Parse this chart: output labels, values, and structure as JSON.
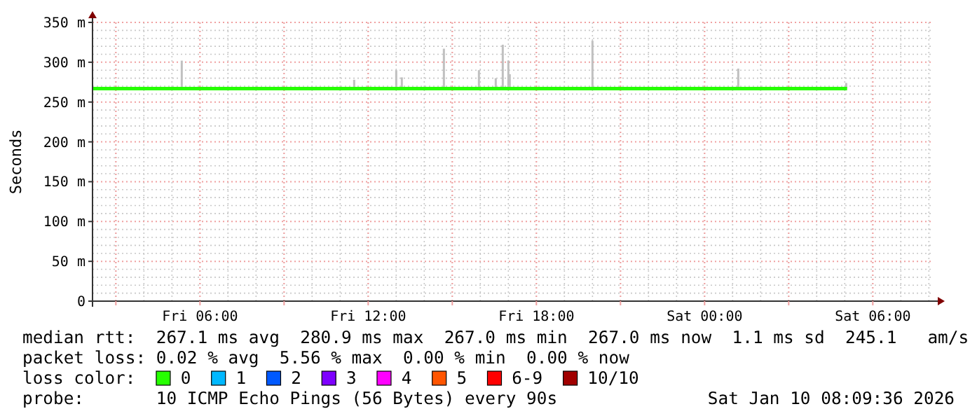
{
  "chart_data": {
    "type": "line",
    "ylabel": "Seconds",
    "legend_title": "loss color:",
    "legend": "bottom",
    "grid": true,
    "xlim": [
      "2026-01-09T02:10",
      "2026-01-10T08:10"
    ],
    "xticks": [
      {
        "value": "2026-01-09T03:00",
        "label": null
      },
      {
        "value": "2026-01-09T06:00",
        "label": "Fri 06:00"
      },
      {
        "value": "2026-01-09T09:00",
        "label": null
      },
      {
        "value": "2026-01-09T12:00",
        "label": "Fri 12:00"
      },
      {
        "value": "2026-01-09T15:00",
        "label": null
      },
      {
        "value": "2026-01-09T18:00",
        "label": "Fri 18:00"
      },
      {
        "value": "2026-01-09T21:00",
        "label": null
      },
      {
        "value": "2026-01-10T00:00",
        "label": "Sat 00:00"
      },
      {
        "value": "2026-01-10T03:00",
        "label": null
      },
      {
        "value": "2026-01-10T06:00",
        "label": "Sat 06:00"
      }
    ],
    "ylim": [
      0,
      350
    ],
    "yticks": [
      0,
      {
        "value": 50,
        "label": "50 m"
      },
      {
        "value": 100,
        "label": "100 m"
      },
      {
        "value": 150,
        "label": "150 m"
      },
      {
        "value": 200,
        "label": "200 m"
      },
      {
        "value": 250,
        "label": "250 m"
      },
      {
        "value": 300,
        "label": "300 m"
      },
      {
        "value": 350,
        "label": "350 m"
      }
    ],
    "series": [
      {
        "type": "bar",
        "color": "#c0c0c0",
        "x": [
          "2026-01-09T05:21",
          "2026-01-09T11:30",
          "2026-01-09T13:00",
          "2026-01-09T13:12",
          "2026-01-09T14:42",
          "2026-01-09T15:57",
          "2026-01-09T16:33",
          "2026-01-09T16:48",
          "2026-01-09T17:00",
          "2026-01-09T17:03",
          "2026-01-09T20:00",
          "2026-01-10T01:12",
          "2026-01-10T05:03"
        ],
        "base": [
          267,
          267,
          267,
          267,
          267,
          267,
          267,
          267,
          267,
          267,
          267,
          267,
          267
        ],
        "values": [
          35,
          11,
          23,
          14,
          50,
          23,
          13,
          55,
          35,
          18,
          60,
          25,
          7
        ]
      },
      {
        "name": "0",
        "color": "#26ff00",
        "x": [
          "2026-01-09T02:10",
          "2026-01-10T05:05"
        ],
        "values": [
          267,
          267
        ]
      },
      {
        "name": "1",
        "color": "#00b8ff"
      },
      {
        "name": "2",
        "color": "#0059ff"
      },
      {
        "name": "3",
        "color": "#7e00ff"
      },
      {
        "name": "4",
        "color": "#ff00ff"
      },
      {
        "name": "5",
        "color": "#ff5500"
      },
      {
        "name": "6-9",
        "color": "#ff0000"
      },
      {
        "name": "10/10",
        "color": "#a10000"
      }
    ],
    "annotations": [
      "median rtt:  267.1 ms avg  280.9 ms max  267.0 ms min  267.0 ms now  1.1 ms sd  245.1   am/s",
      "packet loss: 0.02 % avg  5.56 % max  0.00 % min  0.00 % now",
      "probe:       10 ICMP Echo Pings (56 Bytes) every 90s",
      "Sat Jan 10 08:09:36 2026"
    ]
  }
}
